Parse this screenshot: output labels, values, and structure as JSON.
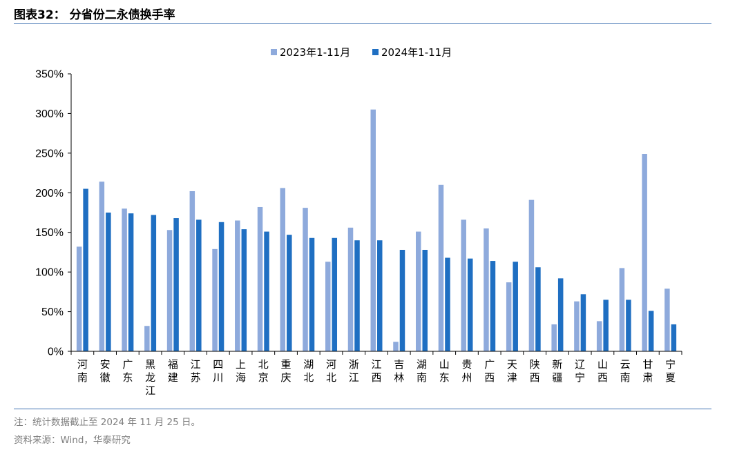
{
  "figure": {
    "title": "图表32：  分省份二永债换手率",
    "note": "注：统计数据截止至 2024 年 11 月 25 日。",
    "source": "资料来源：Wind，华泰研究"
  },
  "colors": {
    "series_2023": "#8eaadc",
    "series_2024": "#1f6fc2",
    "rule": "#3c6fb0",
    "axis": "#000000",
    "footer_text": "#7f7f7f"
  },
  "chart_data": {
    "type": "bar",
    "title": "",
    "xlabel": "",
    "ylabel": "",
    "ylim": [
      0,
      350
    ],
    "yticks": [
      0,
      50,
      100,
      150,
      200,
      250,
      300,
      350
    ],
    "ytick_labels": [
      "0%",
      "50%",
      "100%",
      "150%",
      "200%",
      "250%",
      "300%",
      "350%"
    ],
    "grid": false,
    "legend_position": "top-center",
    "categories": [
      "河南",
      "安徽",
      "广东",
      "黑龙江",
      "福建",
      "江苏",
      "四川",
      "上海",
      "北京",
      "重庆",
      "湖北",
      "河北",
      "浙江",
      "江西",
      "吉林",
      "湖南",
      "山东",
      "贵州",
      "广西",
      "天津",
      "陕西",
      "新疆",
      "辽宁",
      "山西",
      "云南",
      "甘肃",
      "宁夏"
    ],
    "series": [
      {
        "name": "2023年1-11月",
        "values": [
          132,
          214,
          180,
          32,
          153,
          202,
          129,
          165,
          182,
          206,
          181,
          113,
          156,
          305,
          12,
          151,
          210,
          166,
          155,
          87,
          191,
          34,
          63,
          38,
          105,
          249,
          79
        ]
      },
      {
        "name": "2024年1-11月",
        "values": [
          205,
          175,
          174,
          172,
          168,
          166,
          163,
          154,
          151,
          147,
          143,
          143,
          140,
          140,
          128,
          128,
          118,
          117,
          114,
          113,
          106,
          92,
          72,
          65,
          65,
          51,
          34
        ]
      }
    ]
  }
}
